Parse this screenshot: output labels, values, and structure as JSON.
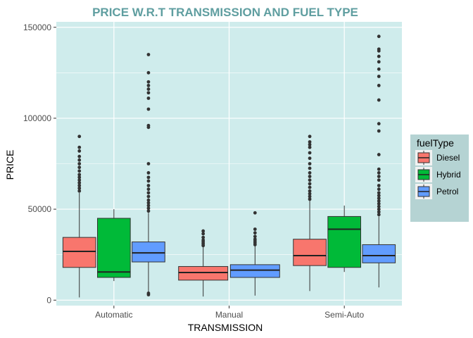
{
  "colors": {
    "panel_bg": "#CFECEC",
    "legend_bg": "#B5D3D3",
    "grid": "#ffffff",
    "title": "#5F9EA0",
    "outlier": "#333333"
  },
  "chart_data": {
    "type": "box",
    "title": "PRICE W.R.T TRANSMISSION AND FUEL TYPE",
    "xlabel": "TRANSMISSION",
    "ylabel": "PRICE",
    "ylim": [
      -3000,
      153000
    ],
    "yticks": [
      0,
      50000,
      100000,
      150000
    ],
    "ytick_labels": [
      "0",
      "50000",
      "100000",
      "150000"
    ],
    "categories": [
      "Automatic",
      "Manual",
      "Semi-Auto"
    ],
    "grid": true,
    "legend": {
      "title": "fuelType",
      "position": "right",
      "entries": [
        {
          "name": "Diesel",
          "color": "#F8766D"
        },
        {
          "name": "Hybrid",
          "color": "#00BA38"
        },
        {
          "name": "Petrol",
          "color": "#619CFF"
        }
      ]
    },
    "series": [
      {
        "name": "Diesel",
        "color": "#F8766D",
        "boxes": [
          {
            "category": "Automatic",
            "whisker_low": 1500,
            "q1": 18000,
            "median": 26800,
            "q3": 34500,
            "whisker_high": 59000,
            "outliers": [
              60000,
              61500,
              63000,
              64500,
              66000,
              67500,
              69000,
              71000,
              73000,
              75000,
              77000,
              79000,
              82000,
              84000,
              90000
            ]
          },
          {
            "category": "Manual",
            "whisker_low": 2000,
            "q1": 11000,
            "median": 15200,
            "q3": 18500,
            "whisker_high": 29500,
            "outliers": [
              30000,
              31000,
              32000,
              33000,
              34500,
              36500,
              38000
            ]
          },
          {
            "category": "Semi-Auto",
            "whisker_low": 5000,
            "q1": 19000,
            "median": 24500,
            "q3": 33500,
            "whisker_high": 55000,
            "outliers": [
              55500,
              57000,
              58500,
              60000,
              62000,
              64000,
              66000,
              68000,
              70000,
              72500,
              75000,
              78000,
              81000,
              84000,
              85500,
              87000,
              90000
            ]
          }
        ]
      },
      {
        "name": "Hybrid",
        "color": "#00BA38",
        "boxes": [
          {
            "category": "Automatic",
            "whisker_low": 10500,
            "q1": 12500,
            "median": 15500,
            "q3": 45000,
            "whisker_high": 50000,
            "outliers": []
          },
          {
            "category": "Semi-Auto",
            "whisker_low": 15500,
            "q1": 18000,
            "median": 39000,
            "q3": 46000,
            "whisker_high": 52000,
            "outliers": []
          }
        ]
      },
      {
        "name": "Petrol",
        "color": "#619CFF",
        "boxes": [
          {
            "category": "Automatic",
            "whisker_low": 4000,
            "q1": 21000,
            "median": 26000,
            "q3": 32000,
            "whisker_high": 48000,
            "outliers": [
              3000,
              3800,
              49000,
              50500,
              52000,
              53500,
              55000,
              57000,
              59000,
              61000,
              63000,
              65500,
              67500,
              70000,
              75000,
              95000,
              96000,
              105000,
              111000,
              114000,
              116000,
              118000,
              120000,
              125000,
              135000
            ]
          },
          {
            "category": "Manual",
            "whisker_low": 2500,
            "q1": 12500,
            "median": 16500,
            "q3": 19500,
            "whisker_high": 30000,
            "outliers": [
              30500,
              31500,
              32500,
              33500,
              35000,
              37000,
              39000,
              48000
            ]
          },
          {
            "category": "Semi-Auto",
            "whisker_low": 7000,
            "q1": 20500,
            "median": 24500,
            "q3": 30500,
            "whisker_high": 46000,
            "outliers": [
              47000,
              48500,
              50000,
              51500,
              53000,
              54500,
              56000,
              57500,
              59000,
              61000,
              63000,
              66000,
              68000,
              70000,
              72000,
              80000,
              93000,
              97000,
              110000,
              118000,
              123000,
              127000,
              131000,
              134000,
              137000,
              138000,
              145000
            ]
          }
        ]
      }
    ]
  }
}
